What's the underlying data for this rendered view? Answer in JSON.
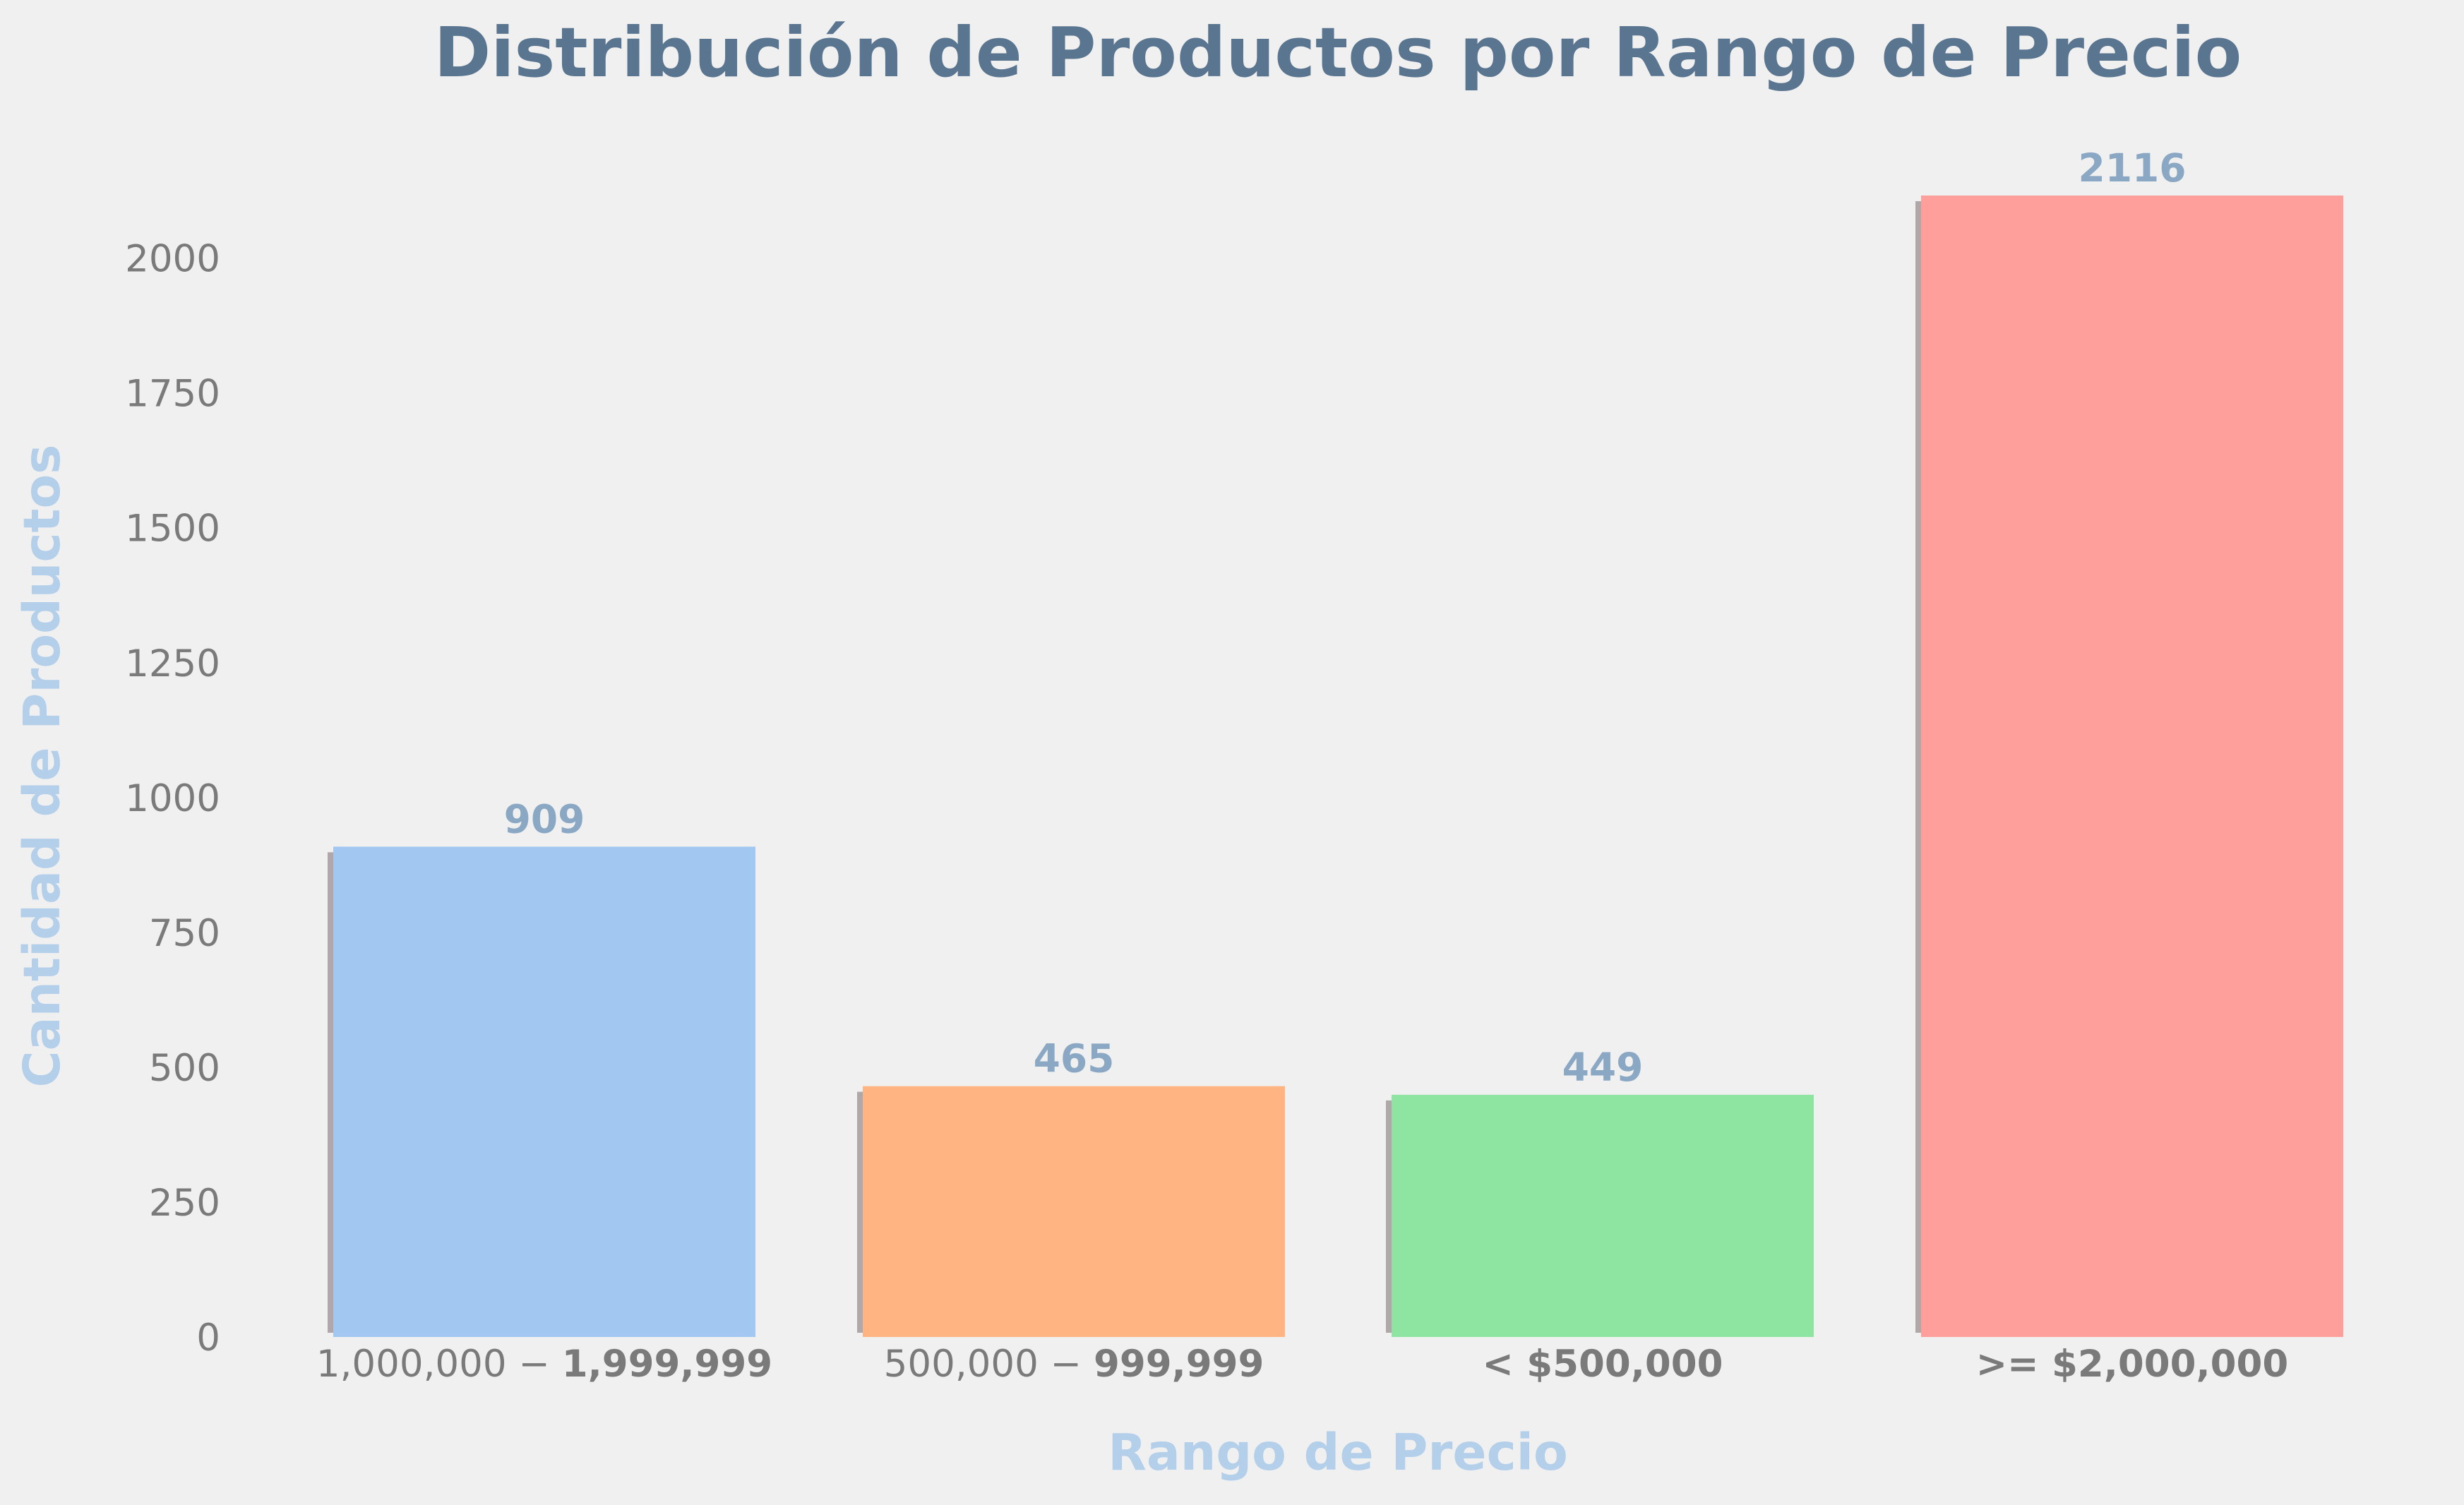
{
  "chart_data": {
    "type": "bar",
    "title": "Distribución de Productos por Rango de Precio",
    "xlabel": "Rango de Precio",
    "ylabel": "Cantidad de Productos",
    "categories": [
      {
        "prefix": "1,000,000 − ",
        "bold": "1,999,999"
      },
      {
        "prefix": "500,000 − ",
        "bold": "999,999"
      },
      {
        "prefix": "",
        "bold": "< $500,000"
      },
      {
        "prefix": "",
        "bold": ">= $2,000,000"
      }
    ],
    "values": [
      909,
      465,
      449,
      2116
    ],
    "value_labels": [
      "909",
      "465",
      "449",
      "2116"
    ],
    "ylim": [
      0,
      2222
    ],
    "yticks": [
      0,
      250,
      500,
      750,
      1000,
      1250,
      1500,
      1750,
      2000
    ],
    "grid": false,
    "legend": "none",
    "colors": {
      "bars": [
        "#a2c8f2",
        "#ffb482",
        "#8de5a1",
        "#ff9f9b"
      ],
      "shadow": "#b0a8a8",
      "title": "#5a7590",
      "axis_label": "#b3cfea",
      "tick": "#7a7a7a",
      "value_label": "#8aa8c4",
      "background": "#f0f0f0"
    }
  }
}
